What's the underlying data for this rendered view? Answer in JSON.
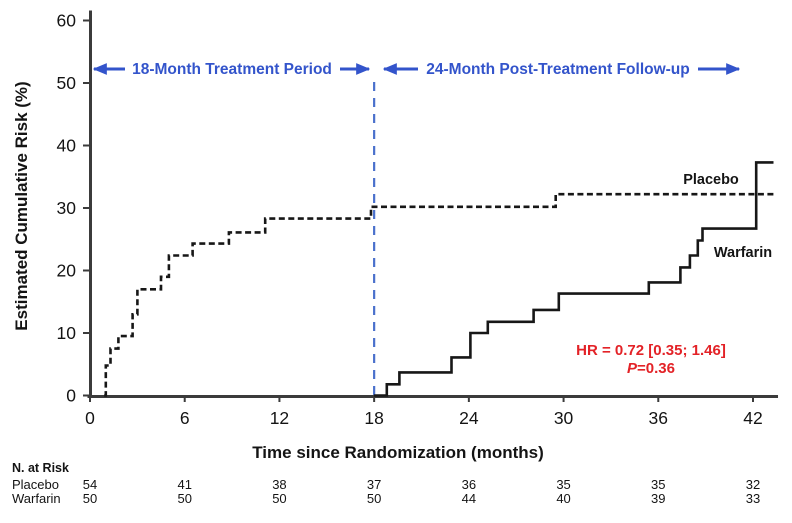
{
  "chart_data": {
    "type": "line",
    "subtype": "kaplan-meier-step",
    "title": "",
    "xlabel": "Time since Randomization (months)",
    "ylabel": "Estimated Cumulative Risk (%)",
    "xlim": [
      0,
      43.3
    ],
    "ylim": [
      0,
      60
    ],
    "x_ticks": [
      0,
      6,
      12,
      18,
      24,
      30,
      36,
      42
    ],
    "y_ticks": [
      0,
      10,
      20,
      30,
      40,
      50,
      60
    ],
    "grid": false,
    "legend_position": "labels-on-plot",
    "colors": {
      "curve": "#171717",
      "axis": "#3b3b3b",
      "ink": "#141414",
      "annotation_blue": "#3354cb",
      "divider_blue": "#4a70cc",
      "stat_red": "#e32227"
    },
    "series": [
      {
        "name": "Placebo",
        "style": "dashed",
        "points": [
          [
            0.9,
            0
          ],
          [
            1.0,
            4.8
          ],
          [
            1.3,
            7.5
          ],
          [
            1.8,
            9.5
          ],
          [
            2.7,
            13.0
          ],
          [
            3.0,
            17.0
          ],
          [
            4.5,
            19.0
          ],
          [
            5.0,
            22.4
          ],
          [
            6.5,
            24.3
          ],
          [
            8.8,
            26.1
          ],
          [
            11.1,
            28.3
          ],
          [
            17.8,
            30.2
          ],
          [
            29.5,
            32.2
          ]
        ],
        "end_month": 43.3
      },
      {
        "name": "Warfarin",
        "style": "solid",
        "points": [
          [
            18.0,
            0
          ],
          [
            18.8,
            1.8
          ],
          [
            19.6,
            3.7
          ],
          [
            22.9,
            6.1
          ],
          [
            24.1,
            10.0
          ],
          [
            25.2,
            11.8
          ],
          [
            28.1,
            13.7
          ],
          [
            29.7,
            16.3
          ],
          [
            35.4,
            18.1
          ],
          [
            37.4,
            20.5
          ],
          [
            38.0,
            22.4
          ],
          [
            38.5,
            24.8
          ],
          [
            38.8,
            26.7
          ],
          [
            42.2,
            37.3
          ]
        ],
        "end_month": 43.3
      }
    ],
    "series_labels": {
      "placebo": "Placebo",
      "warfarin": "Warfarin"
    },
    "annotations": {
      "treatment_period": "18-Month Treatment Period",
      "followup_period": "24-Month Post-Treatment Follow-up",
      "divider_month": 18,
      "hr_text": "HR = 0.72 [0.35; 1.46]",
      "p_label": "P",
      "p_value": "=0.36"
    }
  },
  "risk_table": {
    "header": "N. at Risk",
    "months": [
      0,
      6,
      12,
      18,
      24,
      30,
      36,
      42
    ],
    "rows": [
      {
        "label": "Placebo",
        "values": [
          "54",
          "41",
          "38",
          "37",
          "36",
          "35",
          "35",
          "32"
        ]
      },
      {
        "label": "Warfarin",
        "values": [
          "50",
          "50",
          "50",
          "50",
          "44",
          "40",
          "39",
          "33"
        ]
      }
    ]
  }
}
